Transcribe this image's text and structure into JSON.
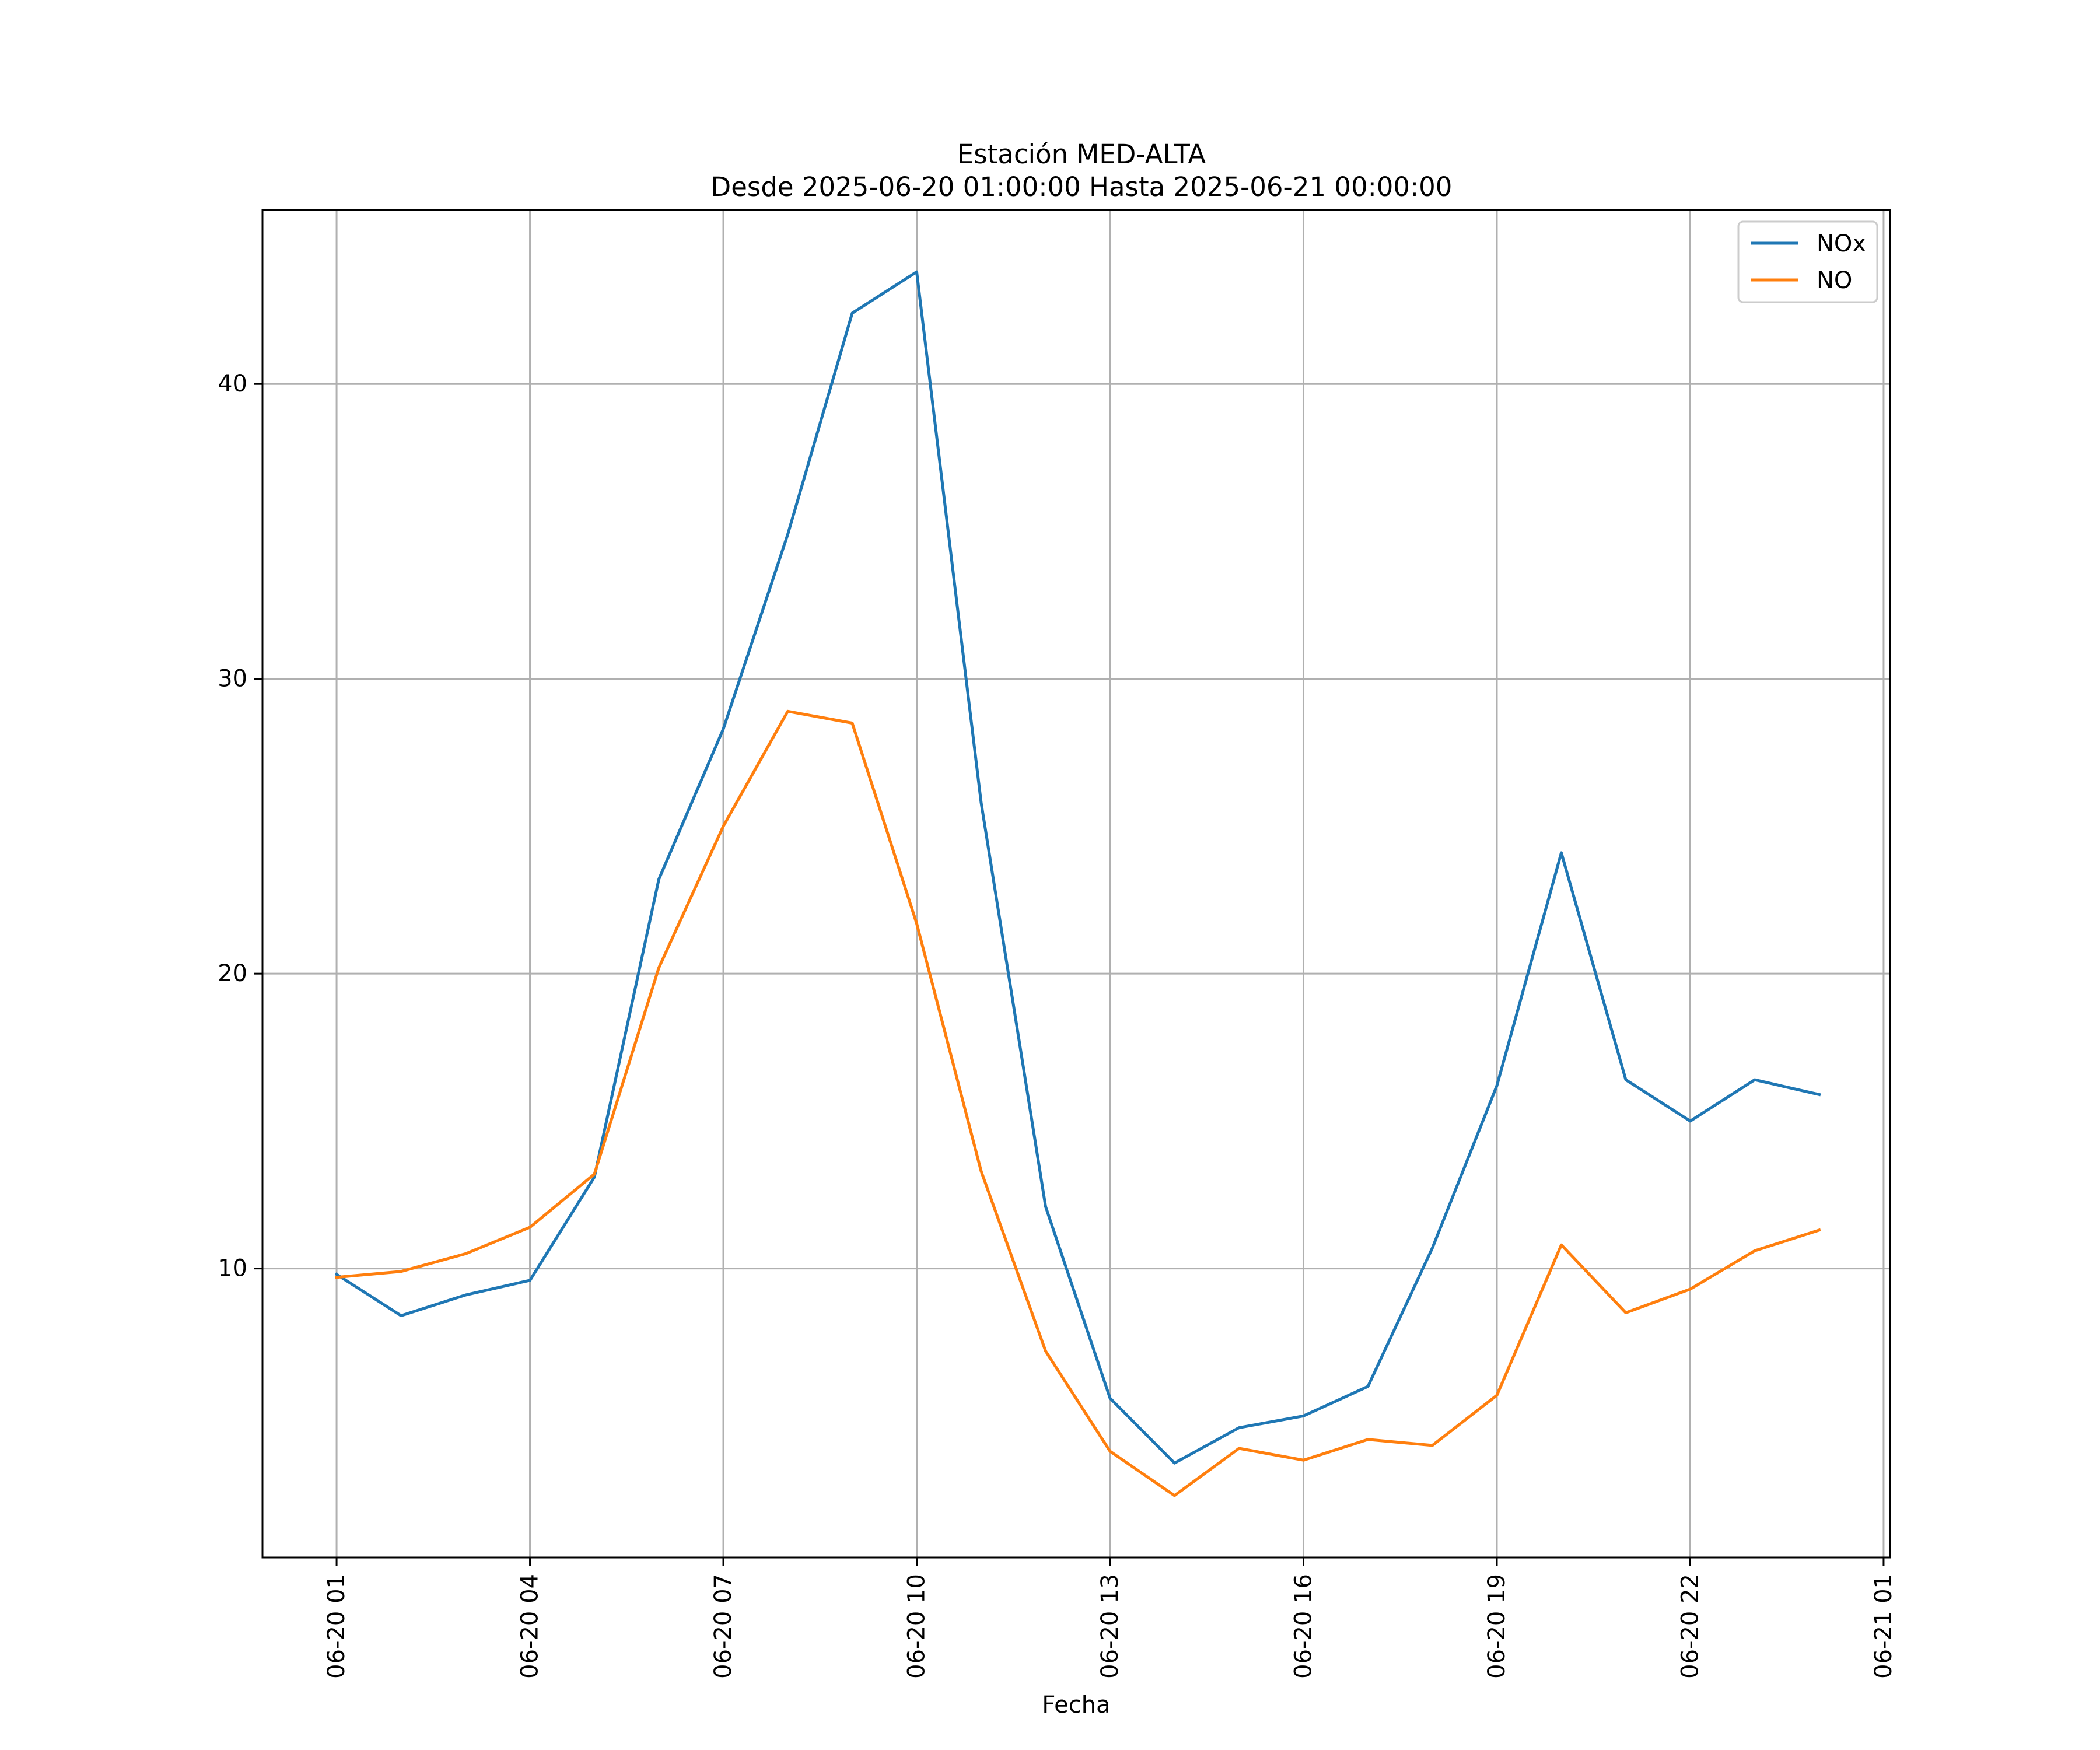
{
  "chart_data": {
    "type": "line",
    "title": "Estación MED-ALTA",
    "subtitle": "Desde 2025-06-20 01:00:00 Hasta 2025-06-21 00:00:00",
    "xlabel": "Fecha",
    "ylabel": "",
    "x": [
      1,
      2,
      3,
      4,
      5,
      6,
      7,
      8,
      9,
      10,
      11,
      12,
      13,
      14,
      15,
      16,
      17,
      18,
      19,
      20,
      21,
      22,
      23,
      24
    ],
    "xlim": [
      -0.15,
      25.1
    ],
    "ylim": [
      0.2,
      45.9
    ],
    "x_ticks": [
      {
        "x": 1,
        "label": "06-20 01"
      },
      {
        "x": 4,
        "label": "06-20 04"
      },
      {
        "x": 7,
        "label": "06-20 07"
      },
      {
        "x": 10,
        "label": "06-20 10"
      },
      {
        "x": 13,
        "label": "06-20 13"
      },
      {
        "x": 16,
        "label": "06-20 16"
      },
      {
        "x": 19,
        "label": "06-20 19"
      },
      {
        "x": 22,
        "label": "06-20 22"
      },
      {
        "x": 25,
        "label": "06-21 01"
      }
    ],
    "y_ticks": [
      {
        "y": 10,
        "label": "10"
      },
      {
        "y": 20,
        "label": "20"
      },
      {
        "y": 30,
        "label": "30"
      },
      {
        "y": 40,
        "label": "40"
      }
    ],
    "grid": true,
    "legend_position": "top-right",
    "series": [
      {
        "name": "NOx",
        "color": "#1f77b4",
        "values": [
          9.8,
          8.4,
          9.1,
          9.6,
          13.1,
          23.2,
          28.3,
          34.9,
          42.4,
          43.8,
          25.8,
          12.1,
          5.6,
          3.4,
          4.6,
          5.0,
          6.0,
          10.7,
          16.2,
          24.1,
          16.4,
          15.0,
          16.4,
          15.9
        ]
      },
      {
        "name": "NO",
        "color": "#ff7f0e",
        "values": [
          9.7,
          9.9,
          10.5,
          11.4,
          13.2,
          20.2,
          25.0,
          28.9,
          28.5,
          21.7,
          13.3,
          7.2,
          3.8,
          2.3,
          3.9,
          3.5,
          4.2,
          4.0,
          5.7,
          10.8,
          8.5,
          9.3,
          10.6,
          11.3
        ]
      }
    ]
  }
}
